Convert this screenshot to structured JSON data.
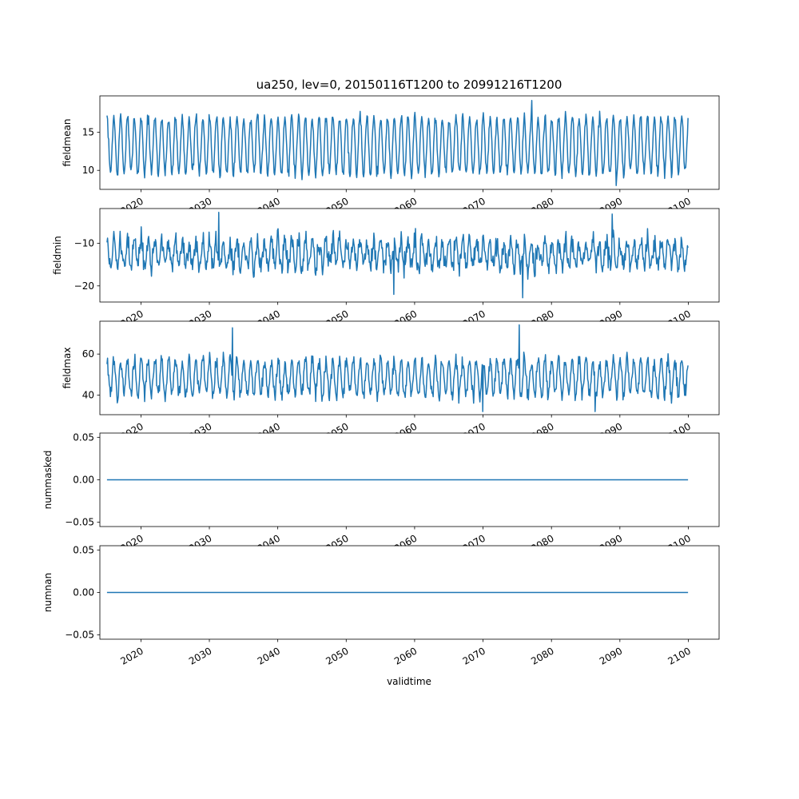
{
  "figure": {
    "title": "ua250, lev=0, 20150116T1200 to 20991216T1200",
    "xlabel": "validtime"
  },
  "chart_data": [
    {
      "type": "line",
      "ylabel": "fieldmean",
      "xlim": [
        2014.0,
        2104.5
      ],
      "ylim": [
        7.5,
        19.8
      ],
      "yticks": [
        "10",
        "15"
      ],
      "xticks": [
        "2020",
        "2030",
        "2040",
        "2050",
        "2060",
        "2070",
        "2080",
        "2090",
        "2100"
      ],
      "line_color": "#1f77b4",
      "x_start": "2015-01",
      "x_end": "2099-12",
      "seasonal": {
        "phase_month": 1,
        "base": 13.3,
        "amp": 3.7,
        "noise": 0.7
      },
      "annotated_points": [
        {
          "x": 2077.1,
          "y": 19.2
        },
        {
          "x": 2089.5,
          "y": 8.0
        }
      ]
    },
    {
      "type": "line",
      "ylabel": "fieldmin",
      "xlim": [
        2014.0,
        2104.5
      ],
      "ylim": [
        -23.8,
        -1.8
      ],
      "yticks": [
        "−20",
        "−10"
      ],
      "xticks": [
        "2020",
        "2030",
        "2040",
        "2050",
        "2060",
        "2070",
        "2080",
        "2090",
        "2100"
      ],
      "line_color": "#1f77b4",
      "x_start": "2015-01",
      "x_end": "2099-12",
      "seasonal": {
        "phase_month": 1,
        "base": -12.5,
        "amp": 3.0,
        "noise": 2.3
      },
      "annotated_points": [
        {
          "x": 2031.4,
          "y": -2.7
        },
        {
          "x": 2088.9,
          "y": -3.1
        },
        {
          "x": 2075.8,
          "y": -22.8
        },
        {
          "x": 2057.0,
          "y": -22.0
        }
      ]
    },
    {
      "type": "line",
      "ylabel": "fieldmax",
      "xlim": [
        2014.0,
        2104.5
      ],
      "ylim": [
        30.5,
        76.0
      ],
      "yticks": [
        "40",
        "60"
      ],
      "xticks": [
        "2020",
        "2030",
        "2040",
        "2050",
        "2060",
        "2070",
        "2080",
        "2090",
        "2100"
      ],
      "line_color": "#1f77b4",
      "x_start": "2015-01",
      "x_end": "2099-12",
      "seasonal": {
        "phase_month": 1,
        "base": 48.5,
        "amp": 8.5,
        "noise": 3.5
      },
      "annotated_points": [
        {
          "x": 2075.3,
          "y": 74.2
        },
        {
          "x": 2033.4,
          "y": 72.8
        },
        {
          "x": 2070.0,
          "y": 32.0
        },
        {
          "x": 2086.4,
          "y": 32.0
        }
      ]
    },
    {
      "type": "line",
      "ylabel": "nummasked",
      "xlim": [
        2014.0,
        2104.5
      ],
      "ylim": [
        -0.055,
        0.055
      ],
      "yticks": [
        "−0.05",
        "0.00",
        "0.05"
      ],
      "xticks": [
        "2020",
        "2030",
        "2040",
        "2050",
        "2060",
        "2070",
        "2080",
        "2090",
        "2100"
      ],
      "line_color": "#1f77b4",
      "x": [
        2015.04,
        2099.96
      ],
      "y": [
        0.0,
        0.0
      ]
    },
    {
      "type": "line",
      "ylabel": "numnan",
      "xlim": [
        2014.0,
        2104.5
      ],
      "ylim": [
        -0.055,
        0.055
      ],
      "yticks": [
        "−0.05",
        "0.00",
        "0.05"
      ],
      "xticks": [
        "2020",
        "2030",
        "2040",
        "2050",
        "2060",
        "2070",
        "2080",
        "2090",
        "2100"
      ],
      "line_color": "#1f77b4",
      "x": [
        2015.04,
        2099.96
      ],
      "y": [
        0.0,
        0.0
      ]
    }
  ]
}
